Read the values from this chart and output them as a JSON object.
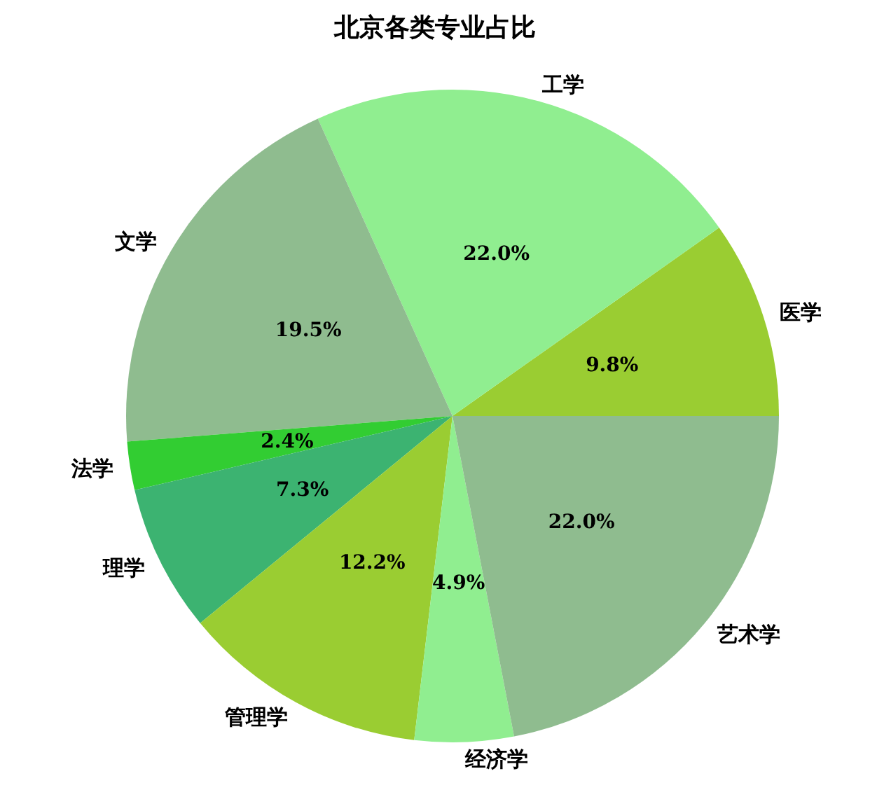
{
  "chart_data": {
    "type": "pie",
    "title": "北京各类专业占比",
    "categories": [
      "医学",
      "工学",
      "文学",
      "法学",
      "理学",
      "管理学",
      "经济学",
      "艺术学"
    ],
    "values": [
      9.8,
      22.0,
      19.5,
      2.4,
      7.3,
      12.2,
      4.9,
      22.0
    ],
    "value_labels": [
      "9.8%",
      "22.0%",
      "19.5%",
      "2.4%",
      "7.3%",
      "12.2%",
      "4.9%",
      "22.0%"
    ],
    "colors": [
      "#9acd32",
      "#90ee90",
      "#8fbc8f",
      "#32cd32",
      "#3cb371",
      "#9acd32",
      "#90ee90",
      "#8fbc8f"
    ]
  }
}
